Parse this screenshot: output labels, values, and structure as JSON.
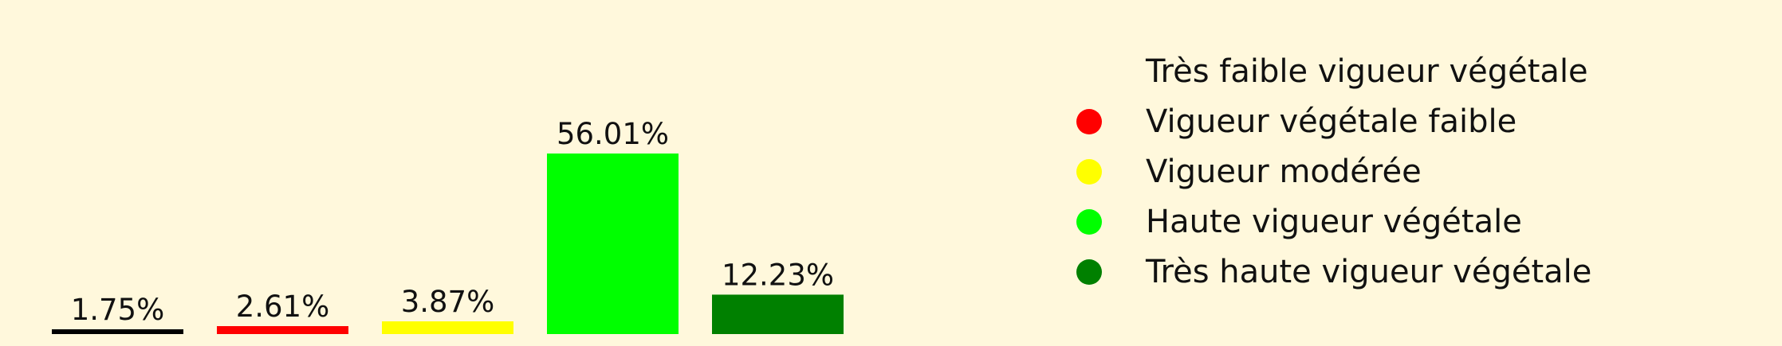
{
  "chart_data": {
    "type": "bar",
    "categories": [
      "Très faible vigueur végétale",
      "Vigueur végétale faible",
      "Vigueur modérée",
      "Haute vigueur végétale",
      "Très haute vigueur végétale"
    ],
    "values": [
      1.75,
      2.61,
      3.87,
      56.01,
      12.23
    ],
    "value_labels": [
      "1.75%",
      "2.61%",
      "3.87%",
      "56.01%",
      "12.23%"
    ],
    "colors": [
      "#000000",
      "#ff0000",
      "#ffff00",
      "#00ff00",
      "#008000"
    ],
    "legend_colors": [
      "#fff8dc",
      "#ff0000",
      "#ffff00",
      "#00ff00",
      "#008000"
    ],
    "ylim": [
      0,
      56.01
    ],
    "title": "",
    "xlabel": "",
    "ylabel": "",
    "grid": false,
    "legend_placement": "right"
  }
}
